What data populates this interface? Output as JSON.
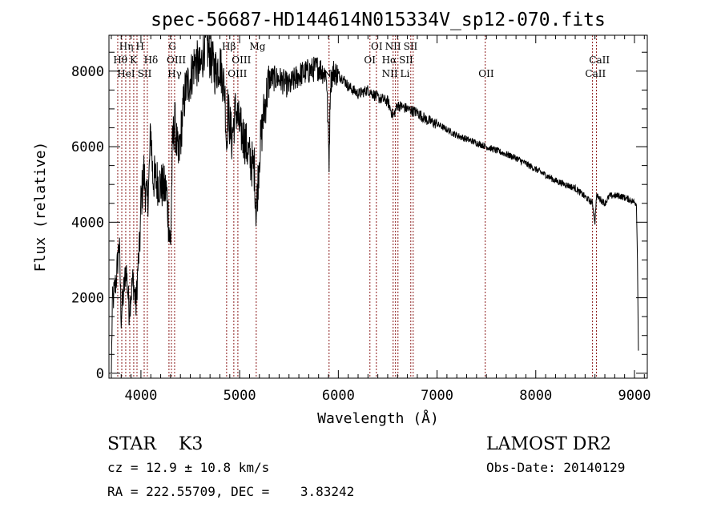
{
  "chart_data": {
    "type": "line",
    "title": "spec-56687-HD144614N015334V_sp12-070.fits",
    "xlabel": "Wavelength (Å)",
    "ylabel": "Flux (relative)",
    "xlim": [
      3676,
      9130
    ],
    "ylim": [
      -130,
      8950
    ],
    "xticks": [
      4000,
      5000,
      6000,
      7000,
      8000,
      9000
    ],
    "yticks": [
      0,
      2000,
      4000,
      6000,
      8000
    ],
    "grid": false,
    "series": [
      {
        "name": "flux",
        "color": "#000000",
        "points": [
          [
            3700,
            0
          ],
          [
            3710,
            1800
          ],
          [
            3750,
            2500
          ],
          [
            3780,
            3500
          ],
          [
            3800,
            1500
          ],
          [
            3850,
            2800
          ],
          [
            3880,
            1700
          ],
          [
            3920,
            2500
          ],
          [
            3950,
            1800
          ],
          [
            3970,
            2800
          ],
          [
            3990,
            3500
          ],
          [
            4000,
            4500
          ],
          [
            4030,
            5300
          ],
          [
            4060,
            4500
          ],
          [
            4080,
            5000
          ],
          [
            4100,
            6500
          ],
          [
            4120,
            5200
          ],
          [
            4200,
            5000
          ],
          [
            4260,
            4800
          ],
          [
            4300,
            3300
          ],
          [
            4320,
            6000
          ],
          [
            4340,
            6700
          ],
          [
            4380,
            5600
          ],
          [
            4420,
            6800
          ],
          [
            4450,
            7500
          ],
          [
            4500,
            7800
          ],
          [
            4550,
            8300
          ],
          [
            4600,
            8000
          ],
          [
            4650,
            8800
          ],
          [
            4700,
            8400
          ],
          [
            4750,
            8000
          ],
          [
            4800,
            8200
          ],
          [
            4850,
            7500
          ],
          [
            4868,
            6000
          ],
          [
            4880,
            7000
          ],
          [
            4920,
            6200
          ],
          [
            4960,
            7000
          ],
          [
            5000,
            6500
          ],
          [
            5050,
            6200
          ],
          [
            5100,
            5700
          ],
          [
            5150,
            5400
          ],
          [
            5168,
            4200
          ],
          [
            5200,
            5800
          ],
          [
            5250,
            7000
          ],
          [
            5300,
            7800
          ],
          [
            5400,
            7800
          ],
          [
            5500,
            7600
          ],
          [
            5600,
            7900
          ],
          [
            5700,
            8000
          ],
          [
            5800,
            8100
          ],
          [
            5880,
            7900
          ],
          [
            5906,
            5600
          ],
          [
            5920,
            7700
          ],
          [
            5950,
            8000
          ],
          [
            6000,
            7900
          ],
          [
            6050,
            7800
          ],
          [
            6100,
            7600
          ],
          [
            6200,
            7400
          ],
          [
            6300,
            7500
          ],
          [
            6400,
            7300
          ],
          [
            6500,
            7200
          ],
          [
            6555,
            6800
          ],
          [
            6600,
            7100
          ],
          [
            6700,
            7000
          ],
          [
            6800,
            6900
          ],
          [
            6900,
            6700
          ],
          [
            7000,
            6600
          ],
          [
            7200,
            6300
          ],
          [
            7400,
            6100
          ],
          [
            7600,
            5900
          ],
          [
            7800,
            5700
          ],
          [
            8000,
            5400
          ],
          [
            8200,
            5100
          ],
          [
            8400,
            4900
          ],
          [
            8575,
            4500
          ],
          [
            8600,
            4000
          ],
          [
            8615,
            4700
          ],
          [
            8700,
            4500
          ],
          [
            8750,
            4700
          ],
          [
            8850,
            4700
          ],
          [
            8950,
            4600
          ],
          [
            9020,
            4500
          ],
          [
            9030,
            3000
          ],
          [
            9040,
            600
          ]
        ]
      }
    ],
    "line_markers": {
      "color": "#8b1a1a",
      "wavelengths": [
        3765,
        3806,
        3846,
        3887,
        3927,
        3960,
        4033,
        4065,
        4284,
        4309,
        4341,
        4868,
        4941,
        4982,
        5168,
        5906,
        6320,
        6385,
        6555,
        6579,
        6604,
        6734,
        6758,
        7488,
        8575,
        8615
      ]
    },
    "annotations": [
      {
        "text": "Hη",
        "w": 3780,
        "row": 1
      },
      {
        "text": "H",
        "w": 3890,
        "row": 1
      },
      {
        "text": "Hθ",
        "w": 3720,
        "row": 2
      },
      {
        "text": "K",
        "w": 3880,
        "row": 2
      },
      {
        "text": "Hδ",
        "w": 4030,
        "row": 2
      },
      {
        "text": "HeI",
        "w": 3760,
        "row": 3
      },
      {
        "text": "SII",
        "w": 3940,
        "row": 3
      },
      {
        "text": "G",
        "w": 4280,
        "row": 1
      },
      {
        "text": "OIII",
        "w": 4260,
        "row": 2
      },
      {
        "text": "Hγ",
        "w": 4270,
        "row": 3
      },
      {
        "text": "Hβ",
        "w": 4820,
        "row": 1
      },
      {
        "text": "OIII",
        "w": 4920,
        "row": 2
      },
      {
        "text": "OIII",
        "w": 4880,
        "row": 3
      },
      {
        "text": "Mg",
        "w": 5100,
        "row": 1
      },
      {
        "text": "Na",
        "w": 5845,
        "row": 3
      },
      {
        "text": "OI",
        "w": 6330,
        "row": 1
      },
      {
        "text": "OI",
        "w": 6260,
        "row": 2
      },
      {
        "text": "NII",
        "w": 6460,
        "row": 1
      },
      {
        "text": "SII",
        "w": 6620,
        "row": 1
      },
      {
        "text": "Hα",
        "w": 6440,
        "row": 2
      },
      {
        "text": "SII",
        "w": 6570,
        "row": 2
      },
      {
        "text": "NII",
        "w": 6440,
        "row": 3
      },
      {
        "text": "Li",
        "w": 6620,
        "row": 3
      },
      {
        "text": "OII",
        "w": 7420,
        "row": 3
      },
      {
        "text": "CaII",
        "w": 8540,
        "row": 2
      },
      {
        "text": "CaII",
        "w": 8500,
        "row": 3
      }
    ]
  },
  "info": {
    "class": "STAR    K3",
    "cz": "cz = 12.9 ± 10.8 km/s",
    "coords": "RA = 222.55709, DEC =    3.83242",
    "survey": "LAMOST DR2",
    "obs_date": "Obs-Date: 20140129"
  }
}
